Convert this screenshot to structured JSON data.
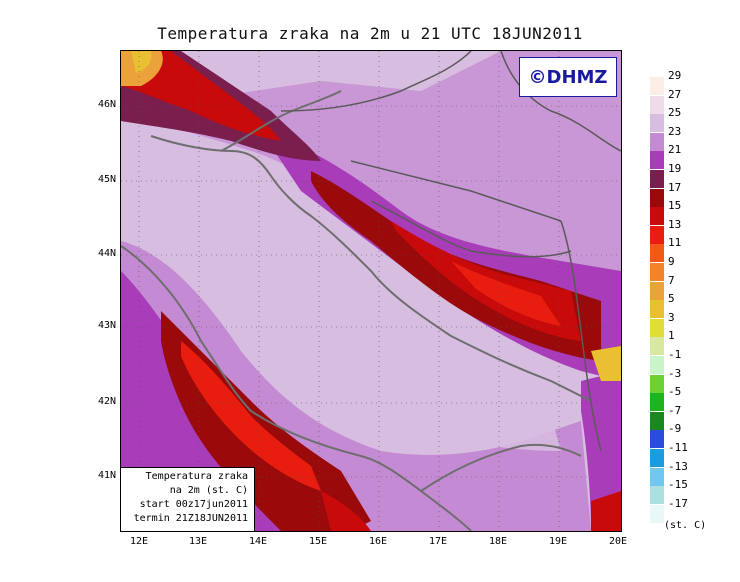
{
  "title": "Temperatura zraka na 2m u 21 UTC 18JUN2011",
  "logo": "©DHMZ",
  "infobox": {
    "line1": "Temperatura zraka",
    "line2": "na 2m (st. C)",
    "line3": "start 00z17jun2011",
    "line4": "termin 21Z18JUN2011"
  },
  "y_axis": [
    "46N",
    "45N",
    "44N",
    "43N",
    "42N",
    "41N"
  ],
  "x_axis": [
    "12E",
    "13E",
    "14E",
    "15E",
    "16E",
    "17E",
    "18E",
    "19E",
    "20E"
  ],
  "legend": {
    "labels": [
      "29",
      "27",
      "25",
      "23",
      "21",
      "19",
      "17",
      "15",
      "13",
      "11",
      "9",
      "7",
      "5",
      "3",
      "1",
      "-1",
      "-3",
      "-5",
      "-7",
      "-9",
      "-11",
      "-13",
      "-15",
      "-17"
    ],
    "colors": [
      "#fbeee6",
      "#efdcea",
      "#d7bde0",
      "#c48ad3",
      "#a93cb8",
      "#7a1e4e",
      "#9a0a0a",
      "#c80a0a",
      "#e81d10",
      "#f05a14",
      "#f18428",
      "#eca23a",
      "#e8c032",
      "#e0de36",
      "#d8e8a0",
      "#c8f4c8",
      "#6ad232",
      "#1eb41e",
      "#18891e",
      "#2a4cdc",
      "#1c9ce0",
      "#6ec8f0",
      "#aae0e0",
      "#e8f8f8"
    ],
    "unit": "(st. C)"
  }
}
